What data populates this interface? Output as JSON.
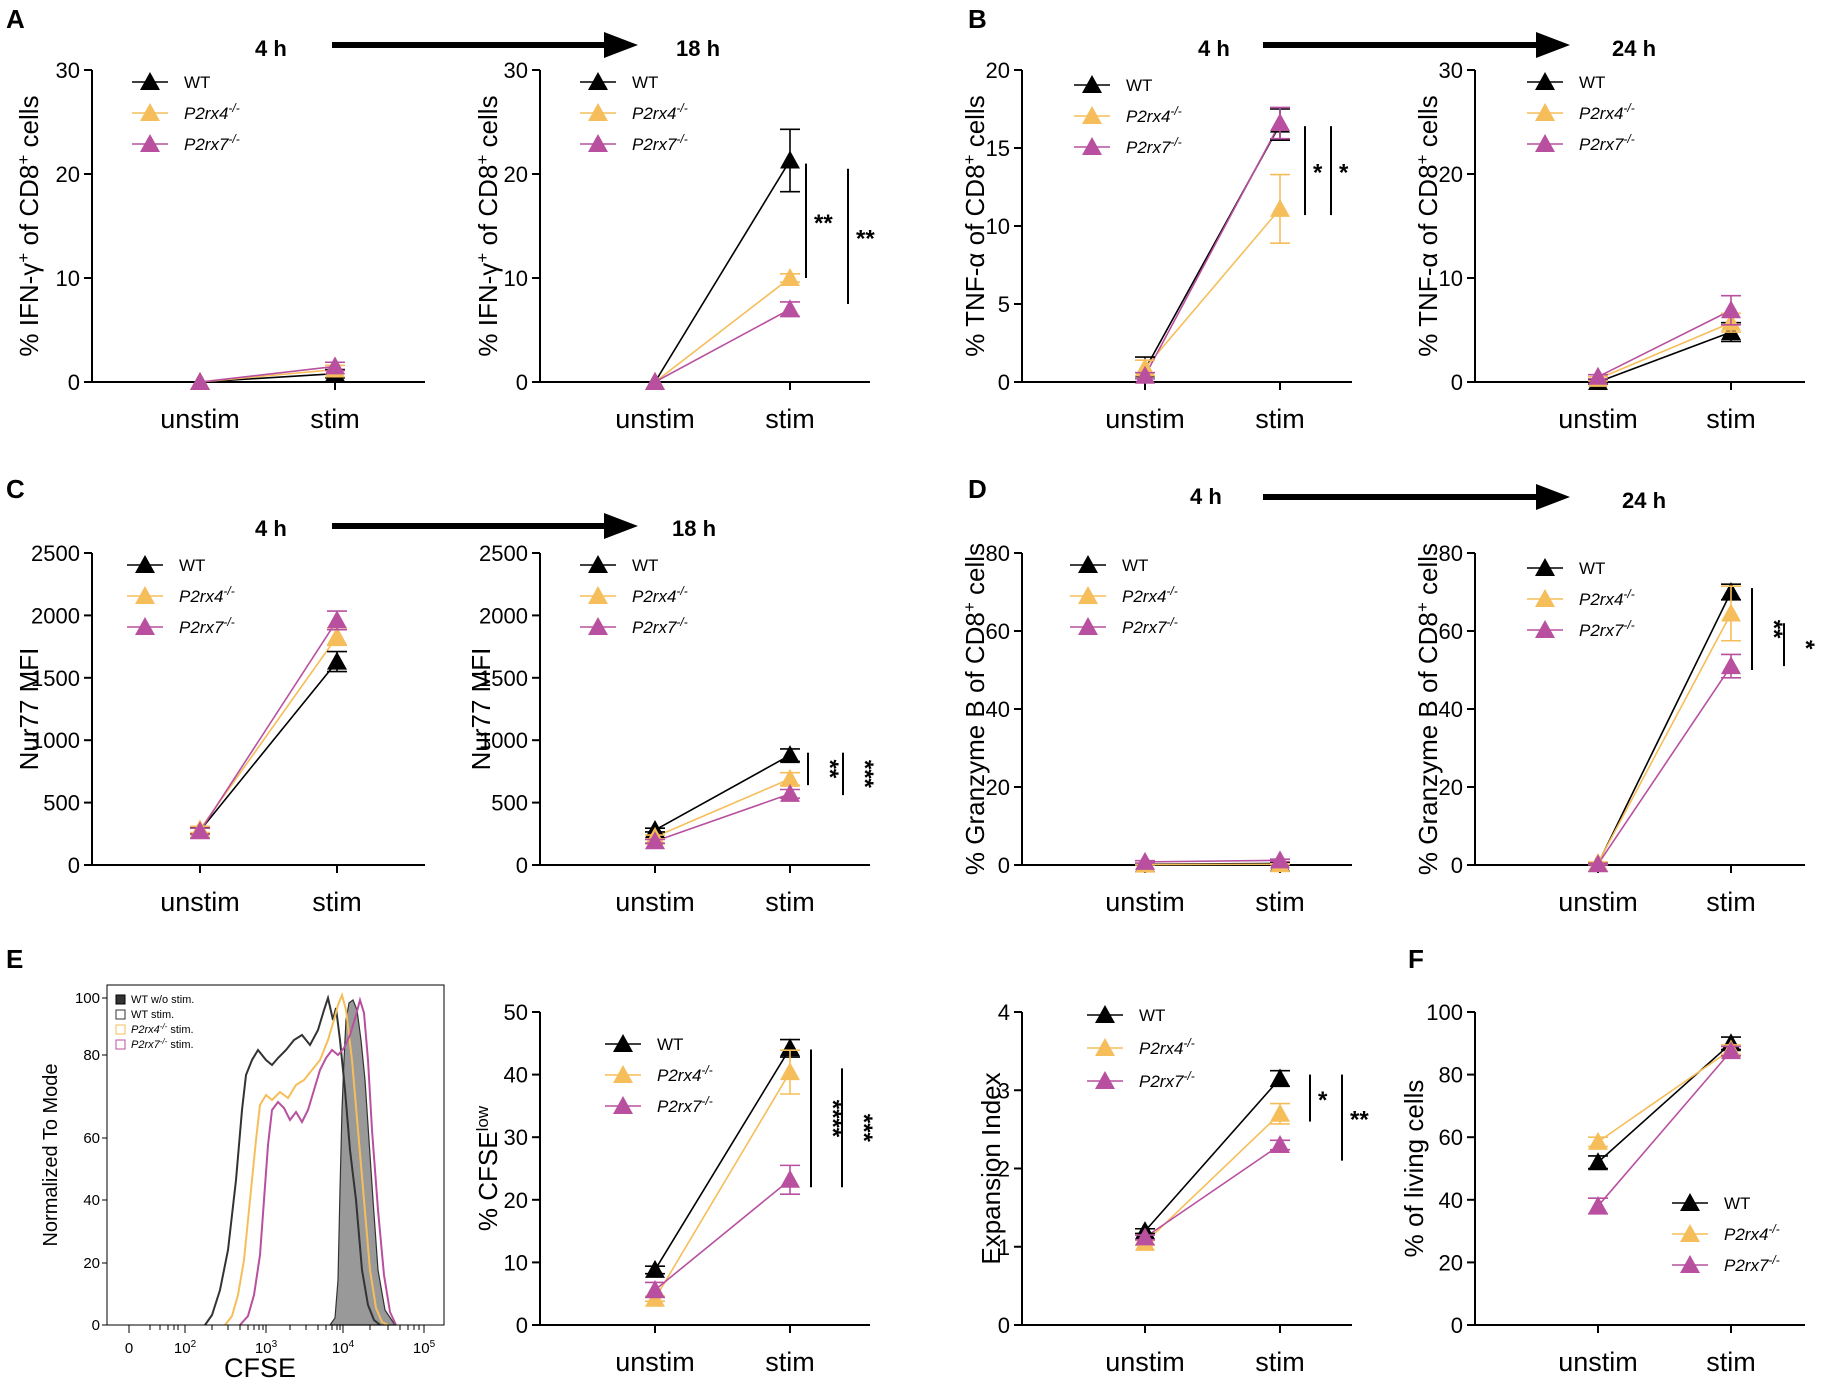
{
  "figure": {
    "panel_letters": [
      "A",
      "B",
      "C",
      "D",
      "E",
      "F"
    ],
    "colors": {
      "WT": "#000000",
      "P2rx4": "#f6be5a",
      "P2rx7": "#b8509f"
    }
  },
  "time_labels": {
    "A_start": "4 h",
    "A_end": "18 h",
    "B_start": "4 h",
    "B_end": "24 h",
    "C_start": "4 h",
    "C_end": "18 h",
    "D_start": "4 h",
    "D_end": "24 h"
  },
  "legend": {
    "wt": "WT",
    "p2rx4": "P2rx4",
    "p2rx7": "P2rx7",
    "ko_sup": "-/-"
  },
  "histogram": {
    "xlabel": "CFSE",
    "ylabel": "Normalized To Mode",
    "y_ticks": [
      "0",
      "20",
      "40",
      "60",
      "80",
      "100"
    ],
    "x_ticks": [
      {
        "base": "0",
        "exp": ""
      },
      {
        "base": "10",
        "exp": "2"
      },
      {
        "base": "10",
        "exp": "3"
      },
      {
        "base": "10",
        "exp": "4"
      },
      {
        "base": "10",
        "exp": "5"
      }
    ],
    "legend": [
      "WT w/o stim.",
      "WT stim.",
      "P2rx4",
      "P2rx7"
    ],
    "legend_suffix": " stim.",
    "ko_sup": "-/-"
  },
  "chart_data": [
    {
      "id": "A1",
      "panel": "A",
      "type": "line",
      "title": "4 h",
      "ylabel": "% IFN-γ+ of CD8+ cells",
      "ylim": [
        0,
        30
      ],
      "yticks": [
        0,
        10,
        20,
        30
      ],
      "categories": [
        "unstim",
        "stim"
      ],
      "series": [
        {
          "name": "WT",
          "values": [
            0,
            0.8
          ],
          "err": [
            0,
            0.4
          ]
        },
        {
          "name": "P2rx4-/-",
          "values": [
            0,
            1.2
          ],
          "err": [
            0,
            0.4
          ]
        },
        {
          "name": "P2rx7-/-",
          "values": [
            0,
            1.5
          ],
          "err": [
            0,
            0.4
          ]
        }
      ],
      "significance": []
    },
    {
      "id": "A2",
      "panel": "A",
      "type": "line",
      "title": "18 h",
      "ylabel": "% IFN-γ+ of CD8+ cells",
      "ylim": [
        0,
        30
      ],
      "yticks": [
        0,
        10,
        20,
        30
      ],
      "categories": [
        "unstim",
        "stim"
      ],
      "series": [
        {
          "name": "WT",
          "values": [
            0,
            21.3
          ],
          "err": [
            0,
            3
          ]
        },
        {
          "name": "P2rx4-/-",
          "values": [
            0,
            10
          ],
          "err": [
            0,
            0.4
          ]
        },
        {
          "name": "P2rx7-/-",
          "values": [
            0,
            7
          ],
          "err": [
            0,
            0.7
          ]
        }
      ],
      "significance": [
        {
          "label": "**",
          "range": [
            10,
            21
          ]
        },
        {
          "label": "**",
          "range": [
            7.5,
            20.5
          ]
        }
      ]
    },
    {
      "id": "B1",
      "panel": "B",
      "type": "line",
      "title": "4 h",
      "ylabel": "% TNF-α of CD8+ cells",
      "ylim": [
        0,
        20
      ],
      "yticks": [
        0,
        5,
        10,
        15,
        20
      ],
      "categories": [
        "unstim",
        "stim"
      ],
      "series": [
        {
          "name": "WT",
          "values": [
            0.8,
            16.5
          ],
          "err": [
            0.8,
            1
          ]
        },
        {
          "name": "P2rx4-/-",
          "values": [
            0.9,
            11.1
          ],
          "err": [
            0.5,
            2.2
          ]
        },
        {
          "name": "P2rx7-/-",
          "values": [
            0.4,
            16.6
          ],
          "err": [
            0.2,
            1
          ]
        }
      ],
      "significance": [
        {
          "label": "*",
          "range": [
            10.7,
            16.4
          ]
        },
        {
          "label": "*",
          "range": [
            10.7,
            16.4
          ]
        }
      ]
    },
    {
      "id": "B2",
      "panel": "B",
      "type": "line",
      "title": "24 h",
      "ylabel": "% TNF-α of CD8+ cells",
      "ylim": [
        0,
        30
      ],
      "yticks": [
        0,
        10,
        20,
        30
      ],
      "categories": [
        "unstim",
        "stim"
      ],
      "series": [
        {
          "name": "WT",
          "values": [
            0,
            4.8
          ],
          "err": [
            0.2,
            0.9
          ]
        },
        {
          "name": "P2rx4-/-",
          "values": [
            0.3,
            5.7
          ],
          "err": [
            0.2,
            0.9
          ]
        },
        {
          "name": "P2rx7-/-",
          "values": [
            0.5,
            6.9
          ],
          "err": [
            0.2,
            1.4
          ]
        }
      ],
      "significance": []
    },
    {
      "id": "C1",
      "panel": "C",
      "type": "line",
      "title": "4 h",
      "ylabel": "Nur77 MFI",
      "ylim": [
        0,
        2500
      ],
      "yticks": [
        0,
        500,
        1000,
        1500,
        2000,
        2500
      ],
      "categories": [
        "unstim",
        "stim"
      ],
      "series": [
        {
          "name": "WT",
          "values": [
            275,
            1630
          ],
          "err": [
            25,
            80
          ]
        },
        {
          "name": "P2rx4-/-",
          "values": [
            285,
            1830
          ],
          "err": [
            25,
            70
          ]
        },
        {
          "name": "P2rx7-/-",
          "values": [
            270,
            1960
          ],
          "err": [
            25,
            75
          ]
        }
      ],
      "significance": []
    },
    {
      "id": "C2",
      "panel": "C",
      "type": "line",
      "title": "18 h",
      "ylabel": "Nur77 MFI",
      "ylim": [
        0,
        2500
      ],
      "yticks": [
        0,
        500,
        1000,
        1500,
        2000,
        2500
      ],
      "categories": [
        "unstim",
        "stim"
      ],
      "series": [
        {
          "name": "WT",
          "values": [
            280,
            880
          ],
          "err": [
            15,
            50
          ]
        },
        {
          "name": "P2rx4-/-",
          "values": [
            225,
            690
          ],
          "err": [
            15,
            50
          ]
        },
        {
          "name": "P2rx7-/-",
          "values": [
            190,
            570
          ],
          "err": [
            15,
            35
          ]
        }
      ],
      "significance": [
        {
          "label": "**",
          "range": [
            640,
            900
          ]
        },
        {
          "label": "***",
          "range": [
            560,
            900
          ]
        }
      ]
    },
    {
      "id": "D1",
      "panel": "D",
      "type": "line",
      "title": "4 h",
      "ylabel": "% Granzyme B of CD8+ cells",
      "ylim": [
        0,
        80
      ],
      "yticks": [
        0,
        20,
        40,
        60,
        80
      ],
      "categories": [
        "unstim",
        "stim"
      ],
      "series": [
        {
          "name": "WT",
          "values": [
            0.2,
            0.4
          ],
          "err": [
            0.2,
            0.2
          ]
        },
        {
          "name": "P2rx4-/-",
          "values": [
            0.1,
            0.2
          ],
          "err": [
            0.1,
            0.1
          ]
        },
        {
          "name": "P2rx7-/-",
          "values": [
            0.8,
            1.2
          ],
          "err": [
            0.3,
            0.3
          ]
        }
      ],
      "significance": []
    },
    {
      "id": "D2",
      "panel": "D",
      "type": "line",
      "title": "24 h",
      "ylabel": "% Granzyme B of CD8+ cells",
      "ylim": [
        0,
        80
      ],
      "yticks": [
        0,
        20,
        40,
        60,
        80
      ],
      "categories": [
        "unstim",
        "stim"
      ],
      "series": [
        {
          "name": "WT",
          "values": [
            0.3,
            70
          ],
          "err": [
            0.2,
            2
          ]
        },
        {
          "name": "P2rx4-/-",
          "values": [
            0.5,
            64.5
          ],
          "err": [
            0.3,
            7
          ]
        },
        {
          "name": "P2rx7-/-",
          "values": [
            0.2,
            51
          ],
          "err": [
            0.2,
            3
          ]
        }
      ],
      "significance": [
        {
          "label": "**",
          "range": [
            50,
            71
          ]
        },
        {
          "label": "*",
          "range": [
            51,
            62
          ]
        }
      ]
    },
    {
      "id": "E2",
      "panel": "E",
      "type": "line",
      "title": "",
      "ylabel": "% CFSElow",
      "ylim": [
        0,
        50
      ],
      "yticks": [
        0,
        10,
        20,
        30,
        40,
        50
      ],
      "categories": [
        "unstim",
        "stim"
      ],
      "series": [
        {
          "name": "WT",
          "values": [
            8.8,
            44.2
          ],
          "err": [
            0.6,
            1.4
          ]
        },
        {
          "name": "P2rx4-/-",
          "values": [
            4.2,
            40.4
          ],
          "err": [
            0.4,
            3.5
          ]
        },
        {
          "name": "P2rx7-/-",
          "values": [
            5.6,
            23.2
          ],
          "err": [
            1.2,
            2.3
          ]
        }
      ],
      "significance": [
        {
          "label": "****",
          "range": [
            22,
            44
          ]
        },
        {
          "label": "***",
          "range": [
            22,
            41
          ]
        }
      ]
    },
    {
      "id": "E3",
      "panel": "E",
      "type": "line",
      "title": "",
      "ylabel": "Expansion Index",
      "ylim": [
        0,
        4
      ],
      "yticks": [
        0,
        1,
        2,
        3,
        4
      ],
      "categories": [
        "unstim",
        "stim"
      ],
      "series": [
        {
          "name": "WT",
          "values": [
            1.2,
            3.15
          ],
          "err": [
            0.03,
            0.1
          ]
        },
        {
          "name": "P2rx4-/-",
          "values": [
            1.05,
            2.7
          ],
          "err": [
            0.03,
            0.13
          ]
        },
        {
          "name": "P2rx7-/-",
          "values": [
            1.12,
            2.3
          ],
          "err": [
            0.03,
            0.06
          ]
        }
      ],
      "significance": [
        {
          "label": "*",
          "range": [
            2.6,
            3.2
          ]
        },
        {
          "label": "**",
          "range": [
            2.1,
            3.2
          ]
        }
      ]
    },
    {
      "id": "F1",
      "panel": "F",
      "type": "line",
      "title": "",
      "ylabel": "% of living cells",
      "ylim": [
        0,
        100
      ],
      "yticks": [
        0,
        20,
        40,
        60,
        80,
        100
      ],
      "categories": [
        "unstim",
        "stim"
      ],
      "series": [
        {
          "name": "WT",
          "values": [
            52,
            90
          ],
          "err": [
            2,
            2
          ]
        },
        {
          "name": "P2rx4-/-",
          "values": [
            58.5,
            88
          ],
          "err": [
            1.5,
            1.5
          ]
        },
        {
          "name": "P2rx7-/-",
          "values": [
            38,
            87.5
          ],
          "err": [
            2.5,
            1.5
          ]
        }
      ],
      "significance": []
    }
  ]
}
